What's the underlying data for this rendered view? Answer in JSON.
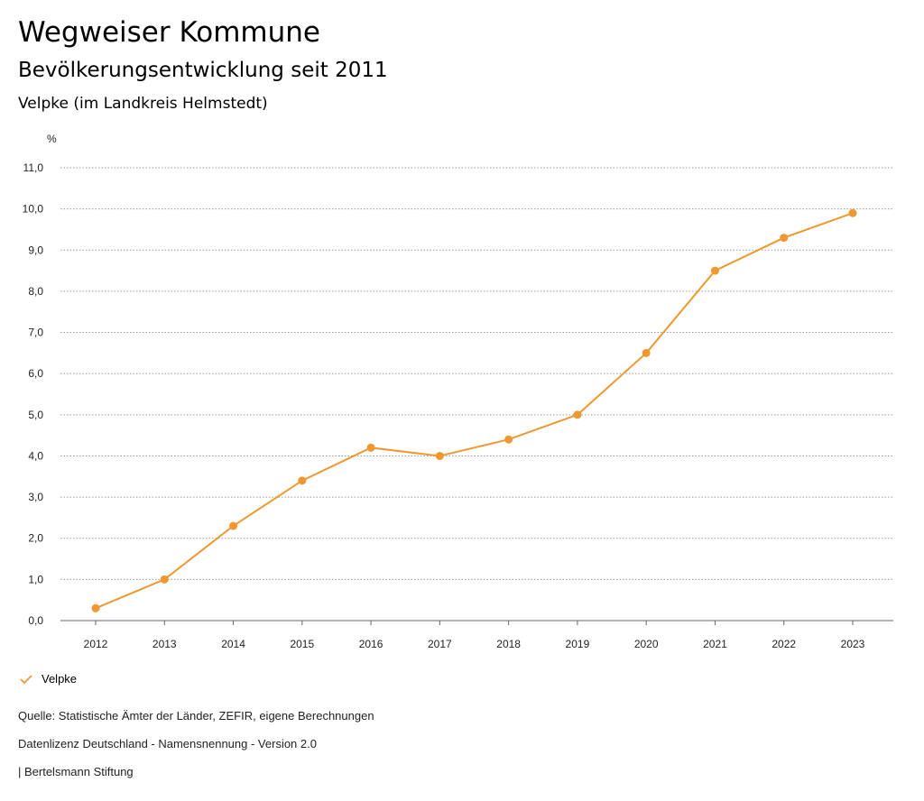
{
  "title": "Wegweiser Kommune",
  "subtitle": "Bevölkerungsentwicklung seit 2011",
  "region": "Velpke (im Landkreis Helmstedt)",
  "chart_data": {
    "type": "line",
    "ylabel": "%",
    "ylim": [
      0,
      11
    ],
    "yticks": [
      "0,0",
      "1,0",
      "2,0",
      "3,0",
      "4,0",
      "5,0",
      "6,0",
      "7,0",
      "8,0",
      "9,0",
      "10,0",
      "11,0"
    ],
    "x": [
      "2012",
      "2013",
      "2014",
      "2015",
      "2016",
      "2017",
      "2018",
      "2019",
      "2020",
      "2021",
      "2022",
      "2023"
    ],
    "series": [
      {
        "name": "Velpke",
        "color": "#f0972f",
        "values": [
          0.3,
          1.0,
          2.3,
          3.4,
          4.2,
          4.0,
          4.4,
          5.0,
          6.5,
          8.5,
          9.3,
          9.9
        ]
      }
    ],
    "grid": true,
    "legend": "bottom-left"
  },
  "footer": {
    "source": "Quelle: Statistische Ämter der Länder, ZEFIR, eigene Berechnungen",
    "license": "Datenlizenz Deutschland - Namensnennung - Version 2.0",
    "publisher": "| Bertelsmann Stiftung"
  }
}
